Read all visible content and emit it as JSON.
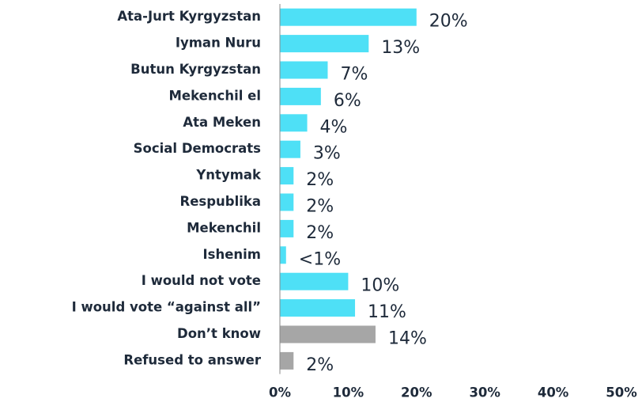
{
  "chart_data": {
    "type": "hbar",
    "categories": [
      "Ata-Jurt Kyrgyzstan",
      "Iyman Nuru",
      "Butun Kyrgyzstan",
      "Mekenchil el",
      "Ata Meken",
      "Social Democrats",
      "Yntymak",
      "Respublika",
      "Mekenchil",
      "Ishenim",
      "I would not vote",
      "I would vote “against all”",
      "Don’t know",
      "Refused to answer"
    ],
    "values": [
      20,
      13,
      7,
      6,
      4,
      3,
      2,
      2,
      2,
      0.9,
      10,
      11,
      14,
      2
    ],
    "value_labels": [
      "20%",
      "13%",
      "7%",
      "6%",
      "4%",
      "3%",
      "2%",
      "2%",
      "2%",
      "<1%",
      "10%",
      "11%",
      "14%",
      "2%"
    ],
    "colors": [
      "#4ee0f6",
      "#4ee0f6",
      "#4ee0f6",
      "#4ee0f6",
      "#4ee0f6",
      "#4ee0f6",
      "#4ee0f6",
      "#4ee0f6",
      "#4ee0f6",
      "#4ee0f6",
      "#4ee0f6",
      "#4ee0f6",
      "#a6a6a6",
      "#a6a6a6"
    ],
    "xlim": [
      0,
      50
    ],
    "xticks": [
      {
        "value": 0,
        "label": "0%"
      },
      {
        "value": 10,
        "label": "10%"
      },
      {
        "value": 20,
        "label": "20%"
      },
      {
        "value": 30,
        "label": "30%"
      },
      {
        "value": 40,
        "label": "40%"
      },
      {
        "value": 50,
        "label": "50%"
      }
    ]
  }
}
